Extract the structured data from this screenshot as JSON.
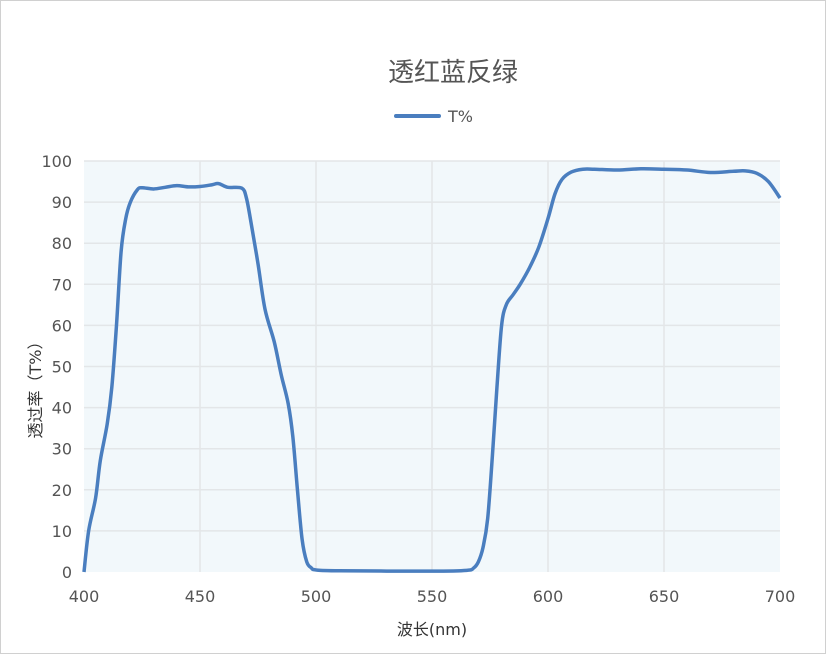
{
  "chart_data": {
    "type": "line",
    "title": "透红蓝反绿",
    "xlabel": "波长(nm)",
    "ylabel": "透过率（T%）",
    "xlim": [
      400,
      700
    ],
    "ylim": [
      0,
      100
    ],
    "xticks": [
      400,
      450,
      500,
      550,
      600,
      650,
      700
    ],
    "yticks": [
      0,
      10,
      20,
      30,
      40,
      50,
      60,
      70,
      80,
      90,
      100
    ],
    "grid": true,
    "legend": "top-center",
    "colors": {
      "line": "#4a7ebf",
      "plot_bg": "#f2f8fb",
      "grid": "#e3e6e8"
    },
    "series": [
      {
        "name": "T%",
        "x": [
          400,
          402,
          405,
          407,
          410,
          412,
          414,
          416,
          418,
          420,
          423,
          425,
          430,
          435,
          440,
          445,
          450,
          455,
          458,
          462,
          468,
          470,
          472,
          475,
          478,
          482,
          485,
          488,
          490,
          492,
          494,
          496,
          498,
          500,
          510,
          550,
          565,
          568,
          570,
          572,
          574,
          576,
          578,
          580,
          582,
          585,
          588,
          592,
          596,
          600,
          603,
          606,
          610,
          615,
          620,
          630,
          640,
          650,
          660,
          670,
          680,
          685,
          690,
          695,
          700
        ],
        "y": [
          0,
          10,
          18,
          27,
          36,
          45,
          60,
          78,
          86,
          90,
          93,
          93.5,
          93.2,
          93.6,
          94,
          93.7,
          93.8,
          94.2,
          94.5,
          93.6,
          93.4,
          91,
          85,
          75,
          64,
          56,
          48,
          41,
          33,
          20,
          8,
          2.5,
          1,
          0.5,
          0.3,
          0.2,
          0.4,
          1,
          2.5,
          6,
          13,
          28,
          45,
          60,
          65,
          67.5,
          70,
          74,
          79,
          86,
          92,
          95.5,
          97.3,
          98,
          98,
          97.8,
          98.1,
          98,
          97.8,
          97.2,
          97.5,
          97.6,
          97,
          95,
          91
        ]
      }
    ]
  }
}
